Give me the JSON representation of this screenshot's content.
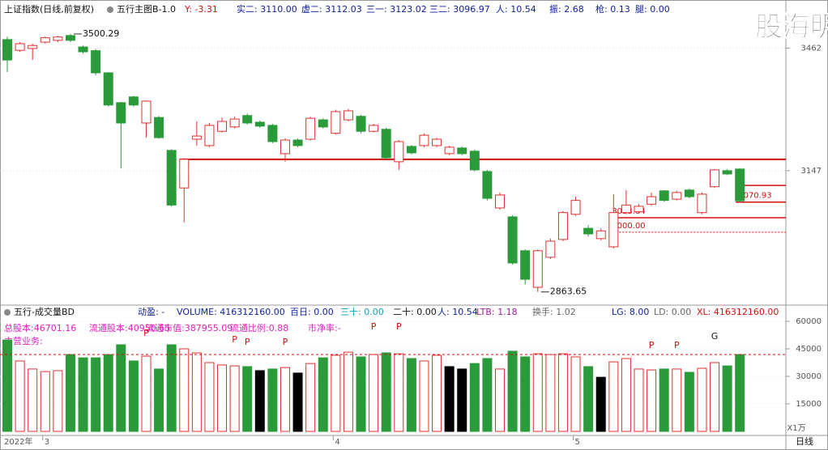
{
  "header": {
    "title": "上证指数(日线,前复权)",
    "indicator": "五行主图B-1.0",
    "items": [
      "Y: -3.31",
      "实二: 3110.00",
      "虚二: 3112.03",
      "三一: 3123.02",
      "三二: 3096.97",
      "人: 10.54",
      "振: 2.68",
      "枪: 0.13",
      "腿: 0.00"
    ]
  },
  "watermark": "股海明灯",
  "chart_data": [
    {
      "type": "candlestick",
      "year_label": "2022年",
      "period": "日线",
      "categories": [
        null,
        null,
        null,
        "3",
        null,
        null,
        null,
        null,
        null,
        null,
        null,
        null,
        null,
        null,
        null,
        null,
        null,
        null,
        null,
        null,
        null,
        null,
        null,
        null,
        null,
        null,
        "4",
        null,
        null,
        null,
        null,
        null,
        null,
        null,
        null,
        null,
        null,
        null,
        null,
        null,
        null,
        null,
        null,
        null,
        null,
        "5",
        null,
        null,
        null,
        null,
        null,
        null,
        null,
        null,
        null,
        null,
        null,
        null,
        null
      ],
      "open": [
        3485,
        3456,
        3461,
        3478,
        3483,
        3496,
        3465,
        3455,
        3396,
        3318,
        3333,
        3266,
        3280,
        3197,
        3105,
        3225,
        3209,
        3245,
        3256,
        3285,
        3268,
        3260,
        3189,
        3223,
        3225,
        3274,
        3240,
        3274,
        3283,
        3245,
        3250,
        3169,
        3207,
        3209,
        3209,
        3189,
        3203,
        3195,
        3145,
        3057,
        3036,
        2957,
        2874,
        2942,
        2983,
        3042,
        3009,
        2985,
        2966,
        3046,
        3048,
        3066,
        3098,
        3078,
        3100,
        3046,
        3108,
        3147,
        3151
      ],
      "high": [
        3493,
        3478,
        3474,
        3493,
        3495,
        3500.29,
        3469,
        3460,
        3398,
        3320,
        3336,
        3324,
        3284,
        3200,
        3178,
        3270,
        3266,
        3280,
        3282,
        3290,
        3272,
        3264,
        3227,
        3227,
        3282,
        3278,
        3300,
        3302,
        3287,
        3264,
        3254,
        3223,
        3210,
        3240,
        3229,
        3209,
        3207,
        3199,
        3149,
        3094,
        3040,
        2960,
        2960,
        2985,
        3050,
        3084,
        3016,
        3009,
        3090,
        3100,
        3066,
        3094,
        3100,
        3098,
        3104,
        3094,
        3151,
        3151,
        3153
      ],
      "low": [
        3398,
        3452,
        3430,
        3474,
        3478,
        3478,
        3447,
        3390,
        3308,
        3153,
        3308,
        3229,
        3226,
        3060,
        3023,
        3209,
        3205,
        3242,
        3252,
        3262,
        3254,
        3215,
        3169,
        3205,
        3222,
        3252,
        3236,
        3270,
        3240,
        3242,
        3175,
        3149,
        3187,
        3205,
        3205,
        3185,
        3185,
        3145,
        3075,
        3053,
        2925,
        2880,
        2863.65,
        2938,
        2979,
        3038,
        2990,
        2981,
        2962,
        3042,
        3044,
        3062,
        3072,
        3075,
        3080,
        3042,
        3105,
        3136,
        3071
      ],
      "close": [
        3430,
        3474,
        3469,
        3490,
        3492,
        3483,
        3452,
        3396,
        3312,
        3266,
        3312,
        3322,
        3229,
        3064,
        3175,
        3233,
        3260,
        3270,
        3276,
        3266,
        3258,
        3219,
        3223,
        3209,
        3278,
        3256,
        3295,
        3297,
        3245,
        3260,
        3179,
        3219,
        3191,
        3235,
        3225,
        3205,
        3189,
        3149,
        3080,
        3088,
        2929,
        2892,
        2957,
        2979,
        3046,
        3075,
        2996,
        3003,
        3046,
        3064,
        3061,
        3084,
        3075,
        3094,
        3084,
        3090,
        3149,
        3139,
        3074
      ],
      "up_color": "#e03030",
      "down_color": "#2a9a3a",
      "ylim": [
        2838,
        3594
      ],
      "log": true,
      "yticks": [
        3147,
        3462
      ],
      "grid": true,
      "annotations": [
        {
          "index": 5,
          "value": 3500.29
        },
        {
          "index": 42,
          "value": 2863.65
        }
      ],
      "levels": [
        {
          "value": 3175,
          "start": 14
        },
        {
          "value": 3111,
          "start": 58
        },
        {
          "value": 3070.93,
          "start": 58
        },
        {
          "value": 3033.84,
          "start": 48
        },
        {
          "value": 3000,
          "label": "3000.00",
          "start": 48,
          "dashed": true
        }
      ]
    },
    {
      "type": "bar",
      "title": "五行-成交量BD",
      "items": [
        "动盈: -",
        "VOLUME: 416312160.00",
        "百日: 0.00",
        "三十: 0.00",
        "二十: 0.00",
        "人: 10.54",
        "LTB: 1.18",
        "换手: 1.02",
        "LG: 8.00",
        "LD: 0.00",
        "XL: 416312160.00"
      ],
      "notes": [
        "总股本:46701.16",
        "流通股本:40950.65",
        "流通市值:387955.09",
        "流通比例:0.88",
        "市净率:-",
        "主营业务:"
      ],
      "signals": [
        {
          "index": 11,
          "label": "P"
        },
        {
          "index": 18,
          "label": "P"
        },
        {
          "index": 19,
          "label": "P"
        },
        {
          "index": 22,
          "label": "P"
        },
        {
          "index": 29,
          "label": "P"
        },
        {
          "index": 31,
          "label": "P"
        },
        {
          "index": 51,
          "label": "P"
        },
        {
          "index": 53,
          "label": "P"
        },
        {
          "index": 56,
          "label": "G"
        }
      ],
      "values": [
        49800,
        38400,
        34000,
        32600,
        33100,
        41900,
        40100,
        40100,
        41900,
        47200,
        38400,
        41000,
        34000,
        47200,
        45000,
        42800,
        37500,
        36200,
        35700,
        35300,
        33100,
        34000,
        34800,
        31800,
        37000,
        40100,
        41500,
        43200,
        40600,
        41900,
        42800,
        42300,
        39700,
        38400,
        41500,
        35300,
        34000,
        37000,
        39700,
        34000,
        43700,
        40600,
        42300,
        41900,
        42300,
        40600,
        35300,
        29500,
        37900,
        39700,
        34000,
        33500,
        34000,
        34000,
        32200,
        34400,
        37500,
        35700,
        41900
      ],
      "highlight_indices": [
        20,
        23,
        35,
        36,
        47
      ],
      "highlight_color": "#000000",
      "reference": 41900,
      "unit": "X1万",
      "ylim": [
        0,
        67500
      ],
      "yticks": [
        15000,
        30000,
        45000,
        60000
      ],
      "grid": true
    }
  ]
}
